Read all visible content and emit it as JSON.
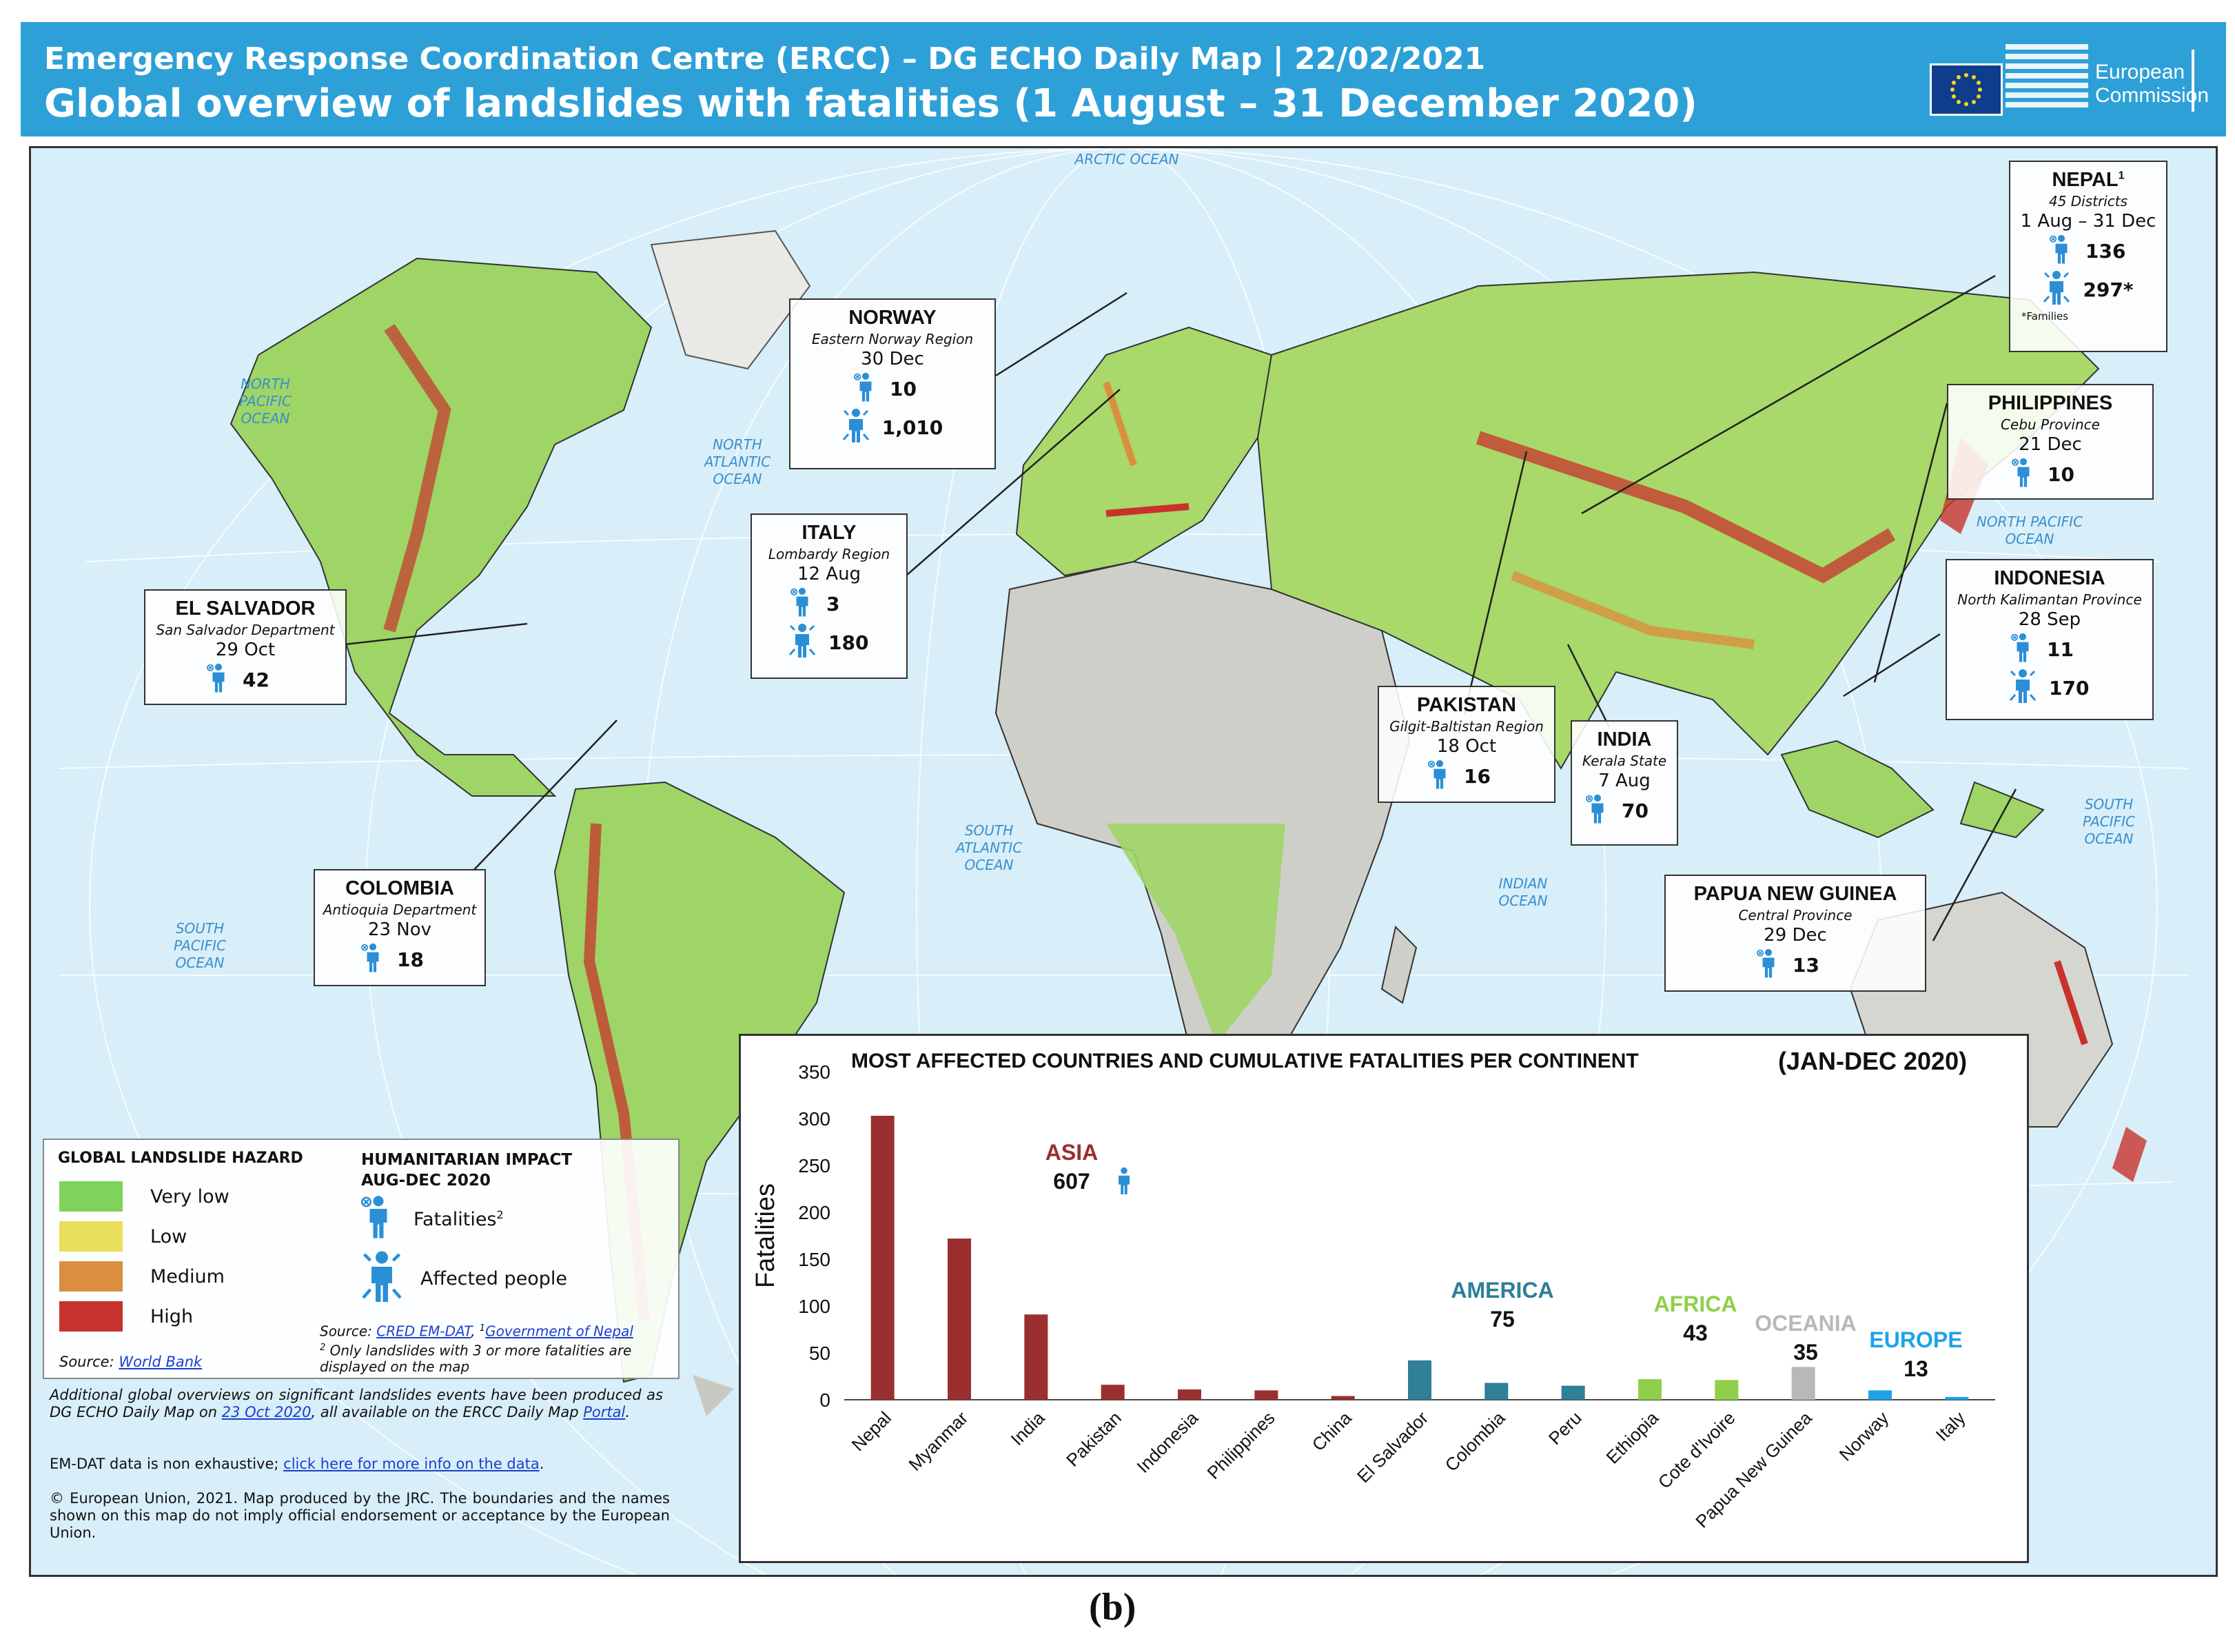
{
  "header": {
    "line1": "Emergency Response Coordination Centre (ERCC) – DG ECHO Daily Map | 22/02/2021",
    "line2": "Global overview of landslides with fatalities (1 August – 31 December 2020)",
    "logo_line1": "European",
    "logo_line2": "Commission"
  },
  "oceans": {
    "arctic": "ARCTIC OCEAN",
    "north_pacific_w": "NORTH PACIFIC OCEAN",
    "north_atlantic": "NORTH ATLANTIC OCEAN",
    "south_pacific_w": "SOUTH PACIFIC OCEAN",
    "south_atlantic": "SOUTH ATLANTIC OCEAN",
    "indian": "INDIAN OCEAN",
    "north_pacific_e": "NORTH PACIFIC OCEAN",
    "south_pacific_e": "SOUTH PACIFIC OCEAN"
  },
  "events": {
    "nepal": {
      "name": "NEPAL",
      "sup": "1",
      "region": "45 Districts",
      "date": "1 Aug – 31 Dec",
      "fatalities": "136",
      "affected": "297*",
      "note": "*Families"
    },
    "norway": {
      "name": "NORWAY",
      "region": "Eastern Norway Region",
      "date": "30 Dec",
      "fatalities": "10",
      "affected": "1,010"
    },
    "italy": {
      "name": "ITALY",
      "region": "Lombardy Region",
      "date": "12 Aug",
      "fatalities": "3",
      "affected": "180"
    },
    "el_salvador": {
      "name": "EL SALVADOR",
      "region": "San Salvador Department",
      "date": "29 Oct",
      "fatalities": "42"
    },
    "colombia": {
      "name": "COLOMBIA",
      "region": "Antioquia Department",
      "date": "23 Nov",
      "fatalities": "18"
    },
    "philippines": {
      "name": "PHILIPPINES",
      "region": "Cebu Province",
      "date": "21 Dec",
      "fatalities": "10"
    },
    "indonesia": {
      "name": "INDONESIA",
      "region": "North Kalimantan Province",
      "date": "28 Sep",
      "fatalities": "11",
      "affected": "170"
    },
    "pakistan": {
      "name": "PAKISTAN",
      "region": "Gilgit-Baltistan Region",
      "date": "18 Oct",
      "fatalities": "16"
    },
    "india": {
      "name": "INDIA",
      "region": "Kerala State",
      "date": "7 Aug",
      "fatalities": "70"
    },
    "png": {
      "name": "PAPUA NEW GUINEA",
      "region": "Central Province",
      "date": "29 Dec",
      "fatalities": "13"
    }
  },
  "legend": {
    "hazard_title": "Global landslide hazard",
    "levels": [
      {
        "label": "Very low",
        "color": "#7fd35a"
      },
      {
        "label": "Low",
        "color": "#eadf5a"
      },
      {
        "label": "Medium",
        "color": "#d98f3e"
      },
      {
        "label": "High",
        "color": "#c8322c"
      }
    ],
    "hazard_source_prefix": "Source:",
    "hazard_source_link": "World Bank",
    "impact_title_1": "Humanitarian impact",
    "impact_title_2": "Aug-Dec 2020",
    "fatalities_label": "Fatalities",
    "fatalities_sup": "2",
    "affected_label": "Affected people",
    "source_prefix": "Source:",
    "source_link1": "CRED EM-DAT",
    "source_sep": ",",
    "source_sup1": "1",
    "source_link2": "Government of Nepal",
    "note_sup": "2",
    "note_text": "Only landslides with 3 or more fatalities are displayed on the map"
  },
  "footer": {
    "para1_a": "Additional global overviews on significant landslides events have been produced as DG ECHO Daily Map on",
    "para1_link": "23 Oct 2020",
    "para1_b": ", all available on the ERCC Daily Map",
    "para1_link2": "Portal",
    "para1_end": ".",
    "para2_a": "EM-DAT data is non exhaustive;",
    "para2_link": "click here for more info on the data",
    "para2_end": ".",
    "para3": "© European Union, 2021. Map produced by the JRC. The boundaries and the names shown on this map do not imply official endorsement or acceptance by the European Union."
  },
  "caption": "(b)",
  "colors": {
    "asia": "#9b2f2f",
    "america": "#2e7f97",
    "africa": "#8fcf4a",
    "oceania": "#b8b8b8",
    "europe": "#1ea3e6",
    "icon": "#2b8fd6"
  },
  "chart_data": {
    "type": "bar",
    "title": "Most affected countries and cumulative fatalities per continent",
    "title_period": "(Jan-Dec 2020)",
    "ylabel": "Fatalities",
    "xlabel": "",
    "ylim": [
      0,
      350
    ],
    "yticks": [
      0,
      50,
      100,
      150,
      200,
      250,
      300,
      350
    ],
    "categories": [
      "Nepal",
      "Myanmar",
      "India",
      "Pakistan",
      "Indonesia",
      "Philippines",
      "China",
      "El Salvador",
      "Colombia",
      "Peru",
      "Ethiopia",
      "Cote d'Ivoire",
      "Papua New Guinea",
      "Norway",
      "Italy"
    ],
    "values": [
      303,
      172,
      91,
      16,
      11,
      10,
      4,
      42,
      18,
      15,
      22,
      21,
      35,
      10,
      3
    ],
    "bar_groups": [
      "asia",
      "asia",
      "asia",
      "asia",
      "asia",
      "asia",
      "asia",
      "america",
      "america",
      "america",
      "africa",
      "africa",
      "oceania",
      "europe",
      "europe"
    ],
    "continents": [
      {
        "key": "asia",
        "name": "ASIA",
        "total": "607"
      },
      {
        "key": "america",
        "name": "AMERICA",
        "total": "75"
      },
      {
        "key": "africa",
        "name": "AFRICA",
        "total": "43"
      },
      {
        "key": "oceania",
        "name": "OCEANIA",
        "total": "35"
      },
      {
        "key": "europe",
        "name": "EUROPE",
        "total": "13"
      }
    ],
    "grid": false,
    "legend": "none"
  }
}
